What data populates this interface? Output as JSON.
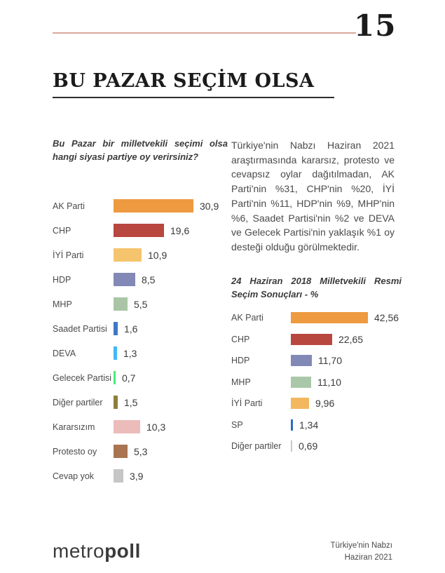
{
  "page": {
    "number": "15",
    "title": "BU PAZAR SEÇİM OLSA",
    "accent_line_color": "#d8a99c"
  },
  "left": {
    "question": "Bu Pazar bir milletvekili seçimi olsa hangi siyasi partiye oy verirsiniz?"
  },
  "right": {
    "paragraph": "Türkiye'nin Nabzı Haziran 2021 araştırmasında kararsız, protesto ve cevapsız oylar dağıtılmadan, AK Parti'nin %31, CHP'nin %20, İYİ Parti'nin %11, HDP'nin %9, MHP'nin %6, Saadet Partisi'nin %2 ve DEVA ve Gelecek Partisi'nin yaklaşık %1 oy desteği olduğu görülmektedir.",
    "chart2_title": "24 Haziran 2018 Milletvekili Resmi Seçim Sonuçları - %"
  },
  "footer": {
    "logo_light": "metro",
    "logo_bold": "poll",
    "right_line1": "Türkiye'nin Nabzı",
    "right_line2": "Haziran 2021"
  },
  "chart_data": [
    {
      "type": "bar",
      "orientation": "horizontal",
      "title": "Bu Pazar bir milletvekili seçimi olsa hangi siyasi partiye oy verirsiniz?",
      "categories": [
        "AK Parti",
        "CHP",
        "İYİ Parti",
        "HDP",
        "MHP",
        "Saadet Partisi",
        "DEVA",
        "Gelecek Partisi",
        "Diğer partiler",
        "Kararsızım",
        "Protesto oy",
        "Cevap yok"
      ],
      "values": [
        30.9,
        19.6,
        10.9,
        8.5,
        5.5,
        1.6,
        1.3,
        0.7,
        1.5,
        10.3,
        5.3,
        3.9
      ],
      "value_labels": [
        "30,9",
        "19,6",
        "10,9",
        "8,5",
        "5,5",
        "1,6",
        "1,3",
        "0,7",
        "1,5",
        "10,3",
        "5,3",
        "3,9"
      ],
      "colors": [
        "#ee9a40",
        "#b8473f",
        "#f5c46c",
        "#8289b6",
        "#a9c5a6",
        "#3e78c9",
        "#3fb9f5",
        "#4ee87a",
        "#8f7f38",
        "#ecbcba",
        "#a97450",
        "#c6c6c6"
      ],
      "xlim": [
        0,
        31
      ],
      "grid": false,
      "legend": false
    },
    {
      "type": "bar",
      "orientation": "horizontal",
      "title": "24 Haziran 2018 Milletvekili Resmi Seçim Sonuçları - %",
      "categories": [
        "AK Parti",
        "CHP",
        "HDP",
        "MHP",
        "İYİ Parti",
        "SP",
        "Diğer partiler"
      ],
      "values": [
        42.56,
        22.65,
        11.7,
        11.1,
        9.96,
        1.34,
        0.69
      ],
      "value_labels": [
        "42,56",
        "22,65",
        "11,70",
        "11,10",
        "9,96",
        "1,34",
        "0,69"
      ],
      "colors": [
        "#ee9a40",
        "#b8473f",
        "#8289b6",
        "#a9c8a9",
        "#f2b75f",
        "#2f6cc4",
        "#c9c9c9"
      ],
      "xlim": [
        0,
        43
      ],
      "grid": false,
      "legend": false
    }
  ]
}
